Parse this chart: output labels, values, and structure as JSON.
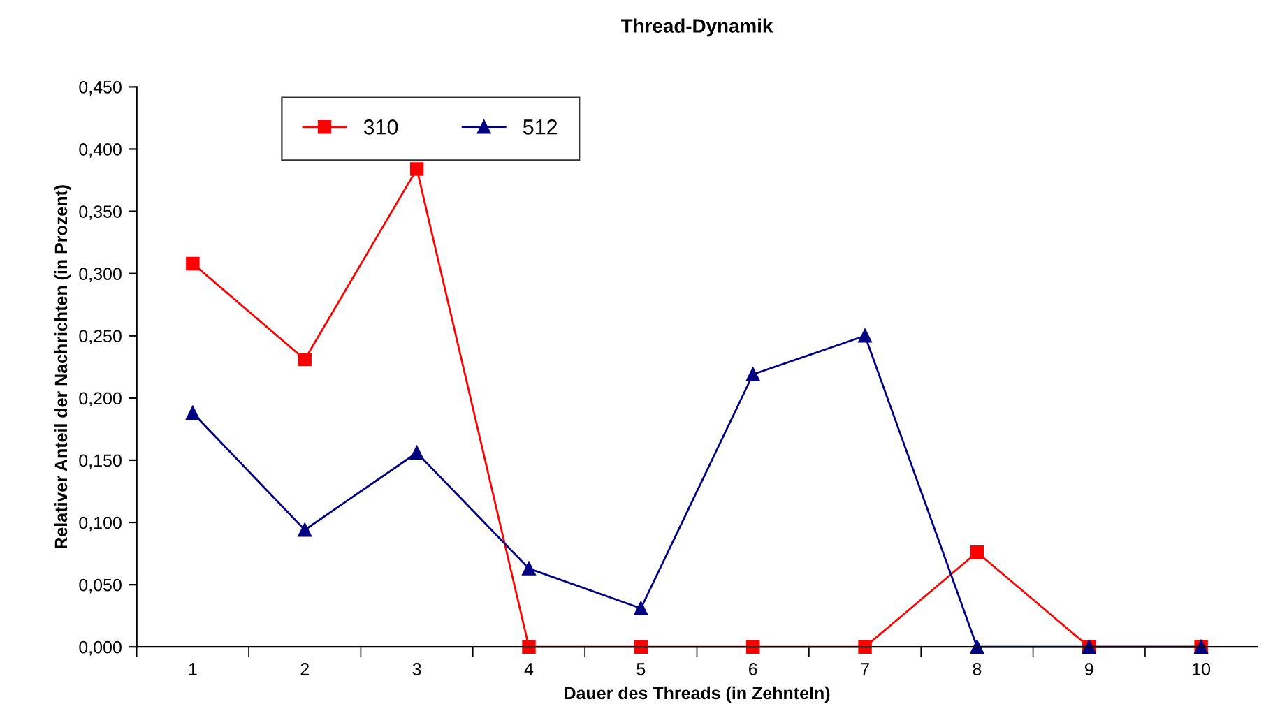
{
  "chart_data": {
    "type": "line",
    "title": "Thread-Dynamik",
    "xlabel": "Dauer des Threads (in Zehnteln)",
    "ylabel": "Relativer Anteil der Nachrichten (in Prozent)",
    "categories": [
      "1",
      "2",
      "3",
      "4",
      "5",
      "6",
      "7",
      "8",
      "9",
      "10"
    ],
    "series": [
      {
        "name": "310",
        "color": "#ff0000",
        "marker": "square",
        "values": [
          0.308,
          0.231,
          0.384,
          0,
          0,
          0,
          0,
          0.076,
          0,
          0
        ]
      },
      {
        "name": "512",
        "color": "#000080",
        "marker": "triangle",
        "values": [
          0.188,
          0.094,
          0.156,
          0.063,
          0.031,
          0.219,
          0.25,
          0,
          0,
          0
        ]
      }
    ],
    "ylim": [
      0,
      0.45
    ],
    "yticks": [
      {
        "value": 0,
        "label": "0,000"
      },
      {
        "value": 0.05,
        "label": "0,050"
      },
      {
        "value": 0.1,
        "label": "0,100"
      },
      {
        "value": 0.15,
        "label": "0,150"
      },
      {
        "value": 0.2,
        "label": "0,200"
      },
      {
        "value": 0.25,
        "label": "0,250"
      },
      {
        "value": 0.3,
        "label": "0,300"
      },
      {
        "value": 0.35,
        "label": "0,350"
      },
      {
        "value": 0.4,
        "label": "0,400"
      },
      {
        "value": 0.45,
        "label": "0,450"
      }
    ],
    "grid": false,
    "legend": "top left",
    "line_style": "solid"
  }
}
